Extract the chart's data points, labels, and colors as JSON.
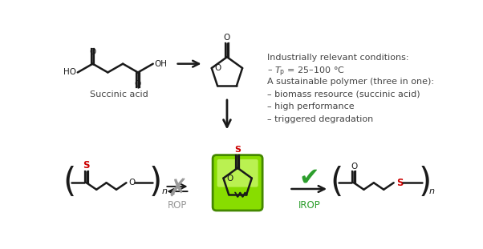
{
  "bg_color": "#ffffff",
  "bond_color": "#1a1a1a",
  "red_color": "#cc0000",
  "green_color": "#2d9e2d",
  "gray_color": "#999999",
  "line_width": 1.8,
  "info_text_lines": [
    "Industrially relevant conditions:",
    "– $\\mathit{T}_{\\mathrm{p}}$ = 25–100 °C",
    "A sustainable polymer (three in one):",
    "– biomass resource (succinic acid)",
    "– high performance",
    "– triggered degradation"
  ],
  "label_succinic": "Succinic acid",
  "label_rop": "ROP",
  "label_irop": "IROP"
}
